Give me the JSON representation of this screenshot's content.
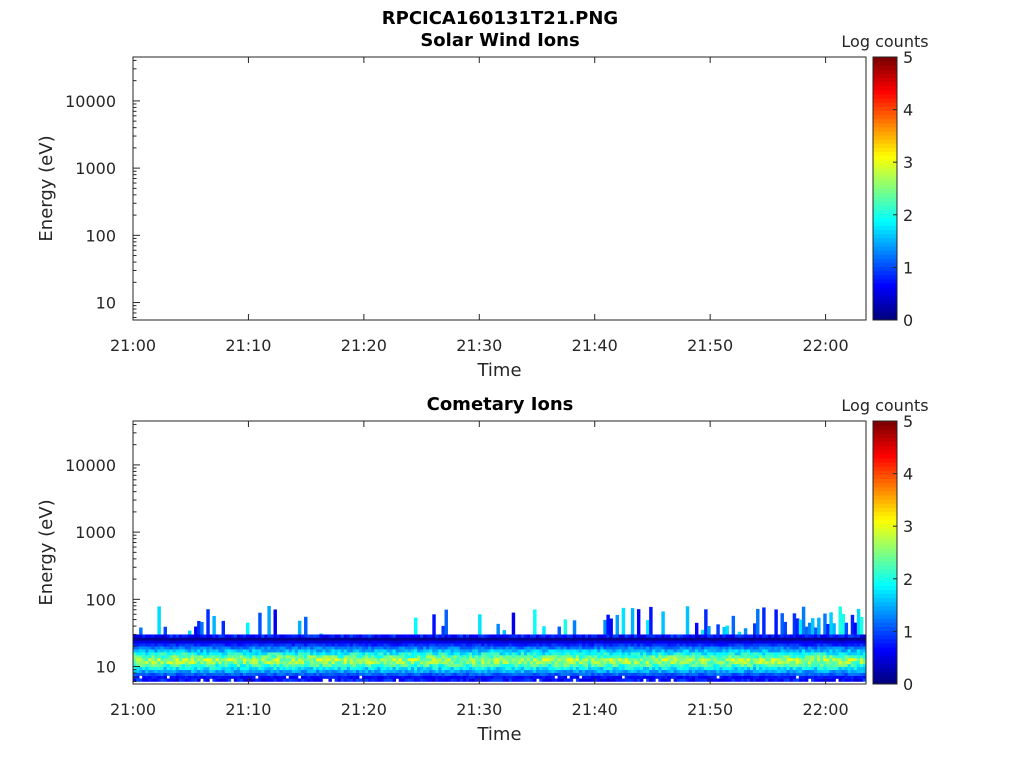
{
  "figure": {
    "title": "RPCICA160131T21.PNG"
  },
  "colors": {
    "axis": "#262626",
    "colormap": "jet"
  },
  "chart_data": [
    {
      "type": "heatmap",
      "title": "Solar Wind Ions",
      "xlabel": "Time",
      "ylabel": "Energy (eV)",
      "yscale": "log",
      "xticks": [
        "21:00",
        "21:10",
        "21:20",
        "21:30",
        "21:40",
        "21:50",
        "22:00"
      ],
      "yticks": [
        "10",
        "100",
        "1000",
        "10000"
      ],
      "ylim": [
        5.5,
        45000
      ],
      "colorbar": {
        "label": "Log counts",
        "ticks": [
          "0",
          "1",
          "2",
          "3",
          "4",
          "5"
        ],
        "range": [
          0,
          5
        ]
      },
      "data_summary": "empty"
    },
    {
      "type": "heatmap",
      "title": "Cometary Ions",
      "xlabel": "Time",
      "ylabel": "Energy (eV)",
      "yscale": "log",
      "xticks": [
        "21:00",
        "21:10",
        "21:20",
        "21:30",
        "21:40",
        "21:50",
        "22:00"
      ],
      "yticks": [
        "10",
        "100",
        "1000",
        "10000"
      ],
      "ylim": [
        5.5,
        45000
      ],
      "colorbar": {
        "label": "Log counts",
        "ticks": [
          "0",
          "1",
          "2",
          "3",
          "4",
          "5"
        ],
        "range": [
          0,
          5
        ]
      },
      "band_energy_range_eV": [
        6,
        30
      ],
      "band_peak_log_counts": 3.0,
      "sporadic_max_energy_eV": 80,
      "xlim_minutes": [
        0,
        63.5
      ]
    }
  ]
}
